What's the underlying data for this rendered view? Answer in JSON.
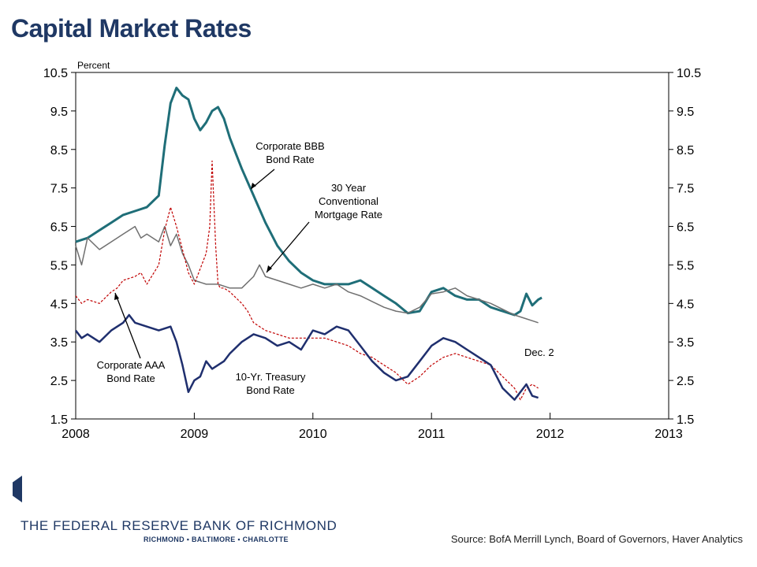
{
  "slide": {
    "title": "Capital Market Rates",
    "footer_org": "THE FEDERAL RESERVE BANK OF RICHMOND",
    "footer_cities": "RICHMOND ▪ BALTIMORE ▪ CHARLOTTE",
    "source": "Source: BofA Merrill Lynch, Board of Governors, Haver Analytics",
    "brand_color": "#1f3864"
  },
  "chart_data": {
    "type": "line",
    "title": "",
    "ylabel": "Percent",
    "xlabel": "",
    "ylim": [
      1.5,
      10.5
    ],
    "xlim": [
      2008,
      2013
    ],
    "yticks": [
      "10.5",
      "9.5",
      "8.5",
      "7.5",
      "6.5",
      "5.5",
      "4.5",
      "3.5",
      "2.5",
      "1.5"
    ],
    "xticks": [
      "2008",
      "2009",
      "2010",
      "2011",
      "2012",
      "2013"
    ],
    "grid": false,
    "legend": "none",
    "annotations": {
      "bbb": [
        "Corporate BBB",
        "Bond Rate"
      ],
      "mortgage": [
        "30 Year",
        "Conventional",
        "Mortgage Rate"
      ],
      "aaa": [
        "Corporate AAA",
        "Bond Rate"
      ],
      "treasury": [
        "10-Yr. Treasury",
        "Bond Rate"
      ],
      "date_note": "Dec. 2"
    },
    "series": [
      {
        "name": "Corporate BBB Bond Rate",
        "color": "#1f6e78",
        "width": 3,
        "dash": "",
        "x": [
          2008.0,
          2008.1,
          2008.2,
          2008.3,
          2008.4,
          2008.5,
          2008.6,
          2008.7,
          2008.75,
          2008.8,
          2008.85,
          2008.9,
          2008.95,
          2009.0,
          2009.05,
          2009.1,
          2009.15,
          2009.2,
          2009.25,
          2009.3,
          2009.35,
          2009.4,
          2009.5,
          2009.6,
          2009.7,
          2009.8,
          2009.9,
          2010.0,
          2010.1,
          2010.2,
          2010.3,
          2010.4,
          2010.5,
          2010.6,
          2010.7,
          2010.8,
          2010.9,
          2011.0,
          2011.1,
          2011.2,
          2011.3,
          2011.4,
          2011.5,
          2011.6,
          2011.7,
          2011.75,
          2011.8,
          2011.85,
          2011.9,
          2011.93
        ],
        "values": [
          6.1,
          6.2,
          6.4,
          6.6,
          6.8,
          6.9,
          7.0,
          7.3,
          8.6,
          9.7,
          10.1,
          9.9,
          9.8,
          9.3,
          9.0,
          9.2,
          9.5,
          9.6,
          9.3,
          8.8,
          8.4,
          8.0,
          7.3,
          6.6,
          6.0,
          5.6,
          5.3,
          5.1,
          5.0,
          5.0,
          5.0,
          5.1,
          4.9,
          4.7,
          4.5,
          4.25,
          4.3,
          4.8,
          4.9,
          4.7,
          4.6,
          4.6,
          4.4,
          4.3,
          4.2,
          4.3,
          4.75,
          4.45,
          4.6,
          4.65
        ]
      },
      {
        "name": "30 Year Conventional Mortgage Rate",
        "color": "#707070",
        "width": 1.5,
        "dash": "",
        "x": [
          2008.0,
          2008.05,
          2008.1,
          2008.2,
          2008.3,
          2008.4,
          2008.5,
          2008.55,
          2008.6,
          2008.7,
          2008.75,
          2008.8,
          2008.85,
          2008.9,
          2008.95,
          2009.0,
          2009.1,
          2009.2,
          2009.3,
          2009.4,
          2009.5,
          2009.55,
          2009.6,
          2009.7,
          2009.8,
          2009.9,
          2010.0,
          2010.1,
          2010.2,
          2010.3,
          2010.4,
          2010.5,
          2010.6,
          2010.7,
          2010.8,
          2010.9,
          2011.0,
          2011.1,
          2011.2,
          2011.3,
          2011.4,
          2011.5,
          2011.6,
          2011.7,
          2011.8,
          2011.85,
          2011.9
        ],
        "values": [
          6.0,
          5.5,
          6.2,
          5.9,
          6.1,
          6.3,
          6.5,
          6.2,
          6.3,
          6.1,
          6.5,
          6.0,
          6.3,
          5.8,
          5.5,
          5.1,
          5.0,
          5.0,
          4.9,
          4.9,
          5.2,
          5.5,
          5.2,
          5.1,
          5.0,
          4.9,
          5.0,
          4.9,
          5.0,
          4.8,
          4.7,
          4.55,
          4.4,
          4.3,
          4.25,
          4.4,
          4.75,
          4.8,
          4.9,
          4.7,
          4.6,
          4.5,
          4.35,
          4.2,
          4.1,
          4.05,
          4.0
        ]
      },
      {
        "name": "Corporate AAA Bond Rate",
        "color": "#c00000",
        "width": 1.2,
        "dash": "3,2",
        "x": [
          2008.0,
          2008.05,
          2008.1,
          2008.2,
          2008.3,
          2008.35,
          2008.4,
          2008.5,
          2008.55,
          2008.6,
          2008.7,
          2008.75,
          2008.8,
          2008.85,
          2008.9,
          2008.95,
          2009.0,
          2009.05,
          2009.1,
          2009.13,
          2009.15,
          2009.18,
          2009.2,
          2009.22,
          2009.25,
          2009.3,
          2009.4,
          2009.45,
          2009.5,
          2009.6,
          2009.7,
          2009.8,
          2009.9,
          2010.0,
          2010.1,
          2010.2,
          2010.3,
          2010.4,
          2010.5,
          2010.6,
          2010.7,
          2010.8,
          2010.9,
          2011.0,
          2011.1,
          2011.2,
          2011.3,
          2011.4,
          2011.5,
          2011.6,
          2011.7,
          2011.75,
          2011.8,
          2011.85,
          2011.9
        ],
        "values": [
          4.7,
          4.5,
          4.6,
          4.5,
          4.8,
          4.9,
          5.1,
          5.2,
          5.3,
          5.0,
          5.5,
          6.4,
          7.0,
          6.5,
          5.9,
          5.3,
          5.0,
          5.4,
          5.8,
          6.5,
          8.2,
          6.0,
          5.0,
          4.9,
          4.9,
          4.8,
          4.5,
          4.3,
          4.0,
          3.8,
          3.7,
          3.6,
          3.6,
          3.6,
          3.6,
          3.5,
          3.4,
          3.2,
          3.1,
          2.9,
          2.7,
          2.4,
          2.6,
          2.9,
          3.1,
          3.2,
          3.1,
          3.0,
          2.9,
          2.6,
          2.3,
          2.0,
          2.3,
          2.4,
          2.3
        ]
      },
      {
        "name": "10-Yr. Treasury Bond Rate",
        "color": "#1f2f6e",
        "width": 2.5,
        "dash": "",
        "x": [
          2008.0,
          2008.05,
          2008.1,
          2008.2,
          2008.3,
          2008.4,
          2008.45,
          2008.5,
          2008.6,
          2008.7,
          2008.8,
          2008.85,
          2008.9,
          2008.95,
          2009.0,
          2009.05,
          2009.1,
          2009.15,
          2009.2,
          2009.25,
          2009.3,
          2009.4,
          2009.5,
          2009.6,
          2009.7,
          2009.8,
          2009.9,
          2010.0,
          2010.1,
          2010.2,
          2010.3,
          2010.4,
          2010.5,
          2010.6,
          2010.7,
          2010.8,
          2010.9,
          2011.0,
          2011.1,
          2011.2,
          2011.3,
          2011.4,
          2011.5,
          2011.6,
          2011.7,
          2011.75,
          2011.8,
          2011.85,
          2011.9
        ],
        "values": [
          3.8,
          3.6,
          3.7,
          3.5,
          3.8,
          4.0,
          4.2,
          4.0,
          3.9,
          3.8,
          3.9,
          3.5,
          2.9,
          2.2,
          2.5,
          2.6,
          3.0,
          2.8,
          2.9,
          3.0,
          3.2,
          3.5,
          3.7,
          3.6,
          3.4,
          3.5,
          3.3,
          3.8,
          3.7,
          3.9,
          3.8,
          3.4,
          3.0,
          2.7,
          2.5,
          2.6,
          3.0,
          3.4,
          3.6,
          3.5,
          3.3,
          3.1,
          2.9,
          2.3,
          2.0,
          2.2,
          2.4,
          2.1,
          2.05
        ]
      }
    ]
  }
}
